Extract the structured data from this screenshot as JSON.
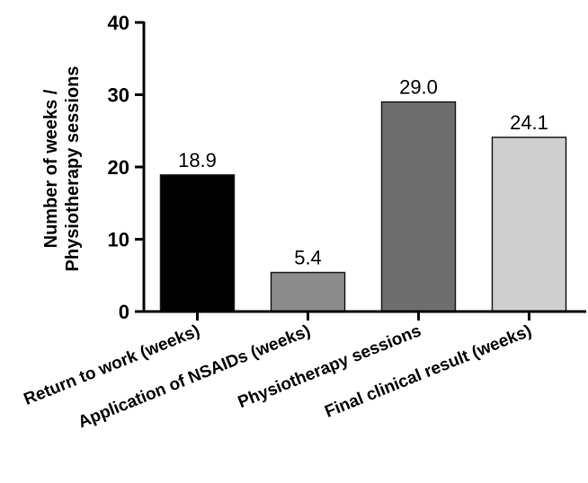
{
  "chart_data": {
    "type": "bar",
    "title": "",
    "xlabel": "",
    "ylabel_lines": [
      "Number of weeks /",
      "Physiotherapy sessions"
    ],
    "ylim": [
      0,
      40
    ],
    "yticks": [
      "0",
      "10",
      "20",
      "30",
      "40"
    ],
    "grid": false,
    "categories": [
      "Return to work (weeks)",
      "Application of NSAIDs (weeks)",
      "Physiotherapy sessions",
      "Final clinical result (weeks)"
    ],
    "values": [
      18.9,
      5.4,
      29.0,
      24.1
    ],
    "data_labels": [
      "18.9",
      "5.4",
      "29.0",
      "24.1"
    ],
    "bar_colors": [
      "#000000",
      "#8c8c8c",
      "#6e6e6e",
      "#cfcfcf"
    ]
  }
}
